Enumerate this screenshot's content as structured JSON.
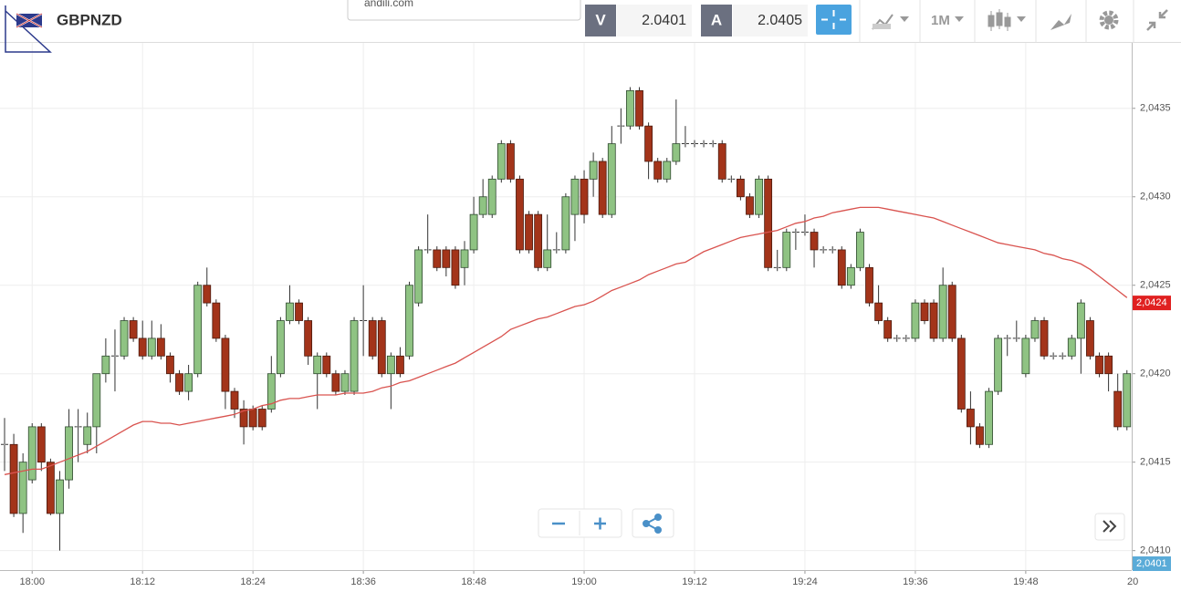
{
  "toolbar": {
    "symbol": "GBPNZD",
    "popup_text": "andili.com",
    "bid": {
      "label": "V",
      "value": "2.0401"
    },
    "ask": {
      "label": "A",
      "value": "2.0405"
    },
    "timeframe": "1M"
  },
  "chart_data": {
    "type": "candlestick",
    "categories": [
      null,
      null,
      null,
      "18:00",
      null,
      null,
      null,
      null,
      null,
      null,
      null,
      null,
      null,
      null,
      null,
      "18:12",
      null,
      null,
      null,
      null,
      null,
      null,
      null,
      null,
      null,
      null,
      null,
      "18:24",
      null,
      null,
      null,
      null,
      null,
      null,
      null,
      null,
      null,
      null,
      null,
      "18:36",
      null,
      null,
      null,
      null,
      null,
      null,
      null,
      null,
      null,
      null,
      null,
      "18:48",
      null,
      null,
      null,
      null,
      null,
      null,
      null,
      null,
      null,
      null,
      null,
      "19:00",
      null,
      null,
      null,
      null,
      null,
      null,
      null,
      null,
      null,
      null,
      null,
      "19:12",
      null,
      null,
      null,
      null,
      null,
      null,
      null,
      null,
      null,
      null,
      null,
      "19:24",
      null,
      null,
      null,
      null,
      null,
      null,
      null,
      null,
      null,
      null,
      null,
      "19:36",
      null,
      null,
      null,
      null,
      null,
      null,
      null,
      null,
      null,
      null,
      null,
      "19:48",
      null,
      null,
      null,
      null,
      null,
      null,
      null,
      null,
      null,
      null,
      null
    ],
    "x_cutoff_label": "20",
    "open": [
      2.0416,
      2.0416,
      2.04121,
      2.0414,
      2.0417,
      2.0415,
      2.04121,
      2.0414,
      2.0417,
      2.0416,
      2.0417,
      2.042,
      2.0421,
      2.0421,
      2.0423,
      2.0422,
      2.0421,
      2.0422,
      2.0421,
      2.042,
      2.0419,
      2.042,
      2.0425,
      2.0424,
      2.0422,
      2.0419,
      2.0418,
      2.0418,
      2.0418,
      2.0418,
      2.042,
      2.0423,
      2.0424,
      2.0423,
      2.042,
      2.0421,
      2.042,
      2.0419,
      2.0419,
      2.0423,
      2.0423,
      2.0423,
      2.042,
      2.0421,
      2.0421,
      2.0424,
      2.0427,
      2.0427,
      2.0427,
      2.0427,
      2.0426,
      2.0427,
      2.0429,
      2.0429,
      2.0431,
      2.0433,
      2.0431,
      2.0429,
      2.0429,
      2.0426,
      2.0427,
      2.0427,
      2.0429,
      2.0431,
      2.0431,
      2.0432,
      2.0429,
      2.0434,
      2.0434,
      2.0436,
      2.0434,
      2.0432,
      2.0431,
      2.0432,
      2.0433,
      2.0433,
      2.0433,
      2.0433,
      2.0433,
      2.0431,
      2.0431,
      2.043,
      2.0429,
      2.0431,
      2.0426,
      2.0426,
      2.0428,
      2.0428,
      2.0428,
      2.0427,
      2.0427,
      2.0427,
      2.0425,
      2.0426,
      2.0426,
      2.0424,
      2.0423,
      2.0422,
      2.0422,
      2.0422,
      2.0424,
      2.0424,
      2.0422,
      2.0425,
      2.0422,
      2.0418,
      2.0417,
      2.0416,
      2.0419,
      2.0422,
      2.0422,
      2.042,
      2.0422,
      2.0423,
      2.0421,
      2.0421,
      2.0421,
      2.0422,
      2.0423,
      2.0421,
      2.0421,
      2.0419,
      2.0417
    ],
    "high": [
      2.04175,
      2.04166,
      2.04155,
      2.04172,
      2.04172,
      2.04152,
      2.04145,
      2.0418,
      2.0418,
      2.04178,
      2.042,
      2.0422,
      2.04225,
      2.04232,
      2.04232,
      2.0423,
      2.0423,
      2.04228,
      2.04212,
      2.04202,
      2.04205,
      2.04252,
      2.0426,
      2.04242,
      2.04222,
      2.04192,
      2.04185,
      2.04182,
      2.04182,
      2.0421,
      2.04232,
      2.0425,
      2.04242,
      2.04232,
      2.04212,
      2.04212,
      2.04202,
      2.04202,
      2.04232,
      2.0425,
      2.04232,
      2.04232,
      2.04212,
      2.04215,
      2.04252,
      2.04272,
      2.0429,
      2.04272,
      2.04272,
      2.04272,
      2.04275,
      2.043,
      2.0431,
      2.04312,
      2.04332,
      2.04332,
      2.04312,
      2.04292,
      2.04292,
      2.0429,
      2.0428,
      2.04302,
      2.04312,
      2.04315,
      2.04325,
      2.04322,
      2.0434,
      2.0435,
      2.04362,
      2.04362,
      2.04342,
      2.04322,
      2.04322,
      2.04355,
      2.0434,
      2.04332,
      2.04332,
      2.04332,
      2.04332,
      2.04312,
      2.04312,
      2.04302,
      2.04312,
      2.04312,
      2.0427,
      2.04282,
      2.04282,
      2.0429,
      2.04282,
      2.04272,
      2.04272,
      2.04272,
      2.04262,
      2.04282,
      2.04262,
      2.0425,
      2.04232,
      2.04222,
      2.04222,
      2.04242,
      2.04242,
      2.04242,
      2.0426,
      2.04252,
      2.04222,
      2.0419,
      2.04172,
      2.04192,
      2.04222,
      2.04222,
      2.0423,
      2.04222,
      2.04232,
      2.04232,
      2.04212,
      2.04212,
      2.04222,
      2.04242,
      2.04232,
      2.04212,
      2.04212,
      2.042,
      2.04202
    ],
    "low": [
      2.04145,
      2.04119,
      2.0411,
      2.04138,
      2.04145,
      2.0412,
      2.041,
      2.04135,
      2.0415,
      2.04155,
      2.04155,
      2.04195,
      2.0419,
      2.04208,
      2.04218,
      2.04208,
      2.04208,
      2.04208,
      2.04195,
      2.04188,
      2.04185,
      2.04198,
      2.04238,
      2.04218,
      2.0418,
      2.04175,
      2.0416,
      2.04168,
      2.04168,
      2.04178,
      2.04198,
      2.04228,
      2.04228,
      2.04205,
      2.0418,
      2.04198,
      2.04188,
      2.04188,
      2.04188,
      2.0421,
      2.04208,
      2.04198,
      2.0418,
      2.04198,
      2.04208,
      2.04238,
      2.04268,
      2.04258,
      2.04255,
      2.04248,
      2.0425,
      2.04268,
      2.04288,
      2.04288,
      2.04308,
      2.04308,
      2.04268,
      2.04268,
      2.04258,
      2.04258,
      2.04268,
      2.04268,
      2.04275,
      2.04285,
      2.043,
      2.04288,
      2.04288,
      2.0433,
      2.04338,
      2.04338,
      2.0431,
      2.04308,
      2.04308,
      2.04318,
      2.04328,
      2.04328,
      2.04328,
      2.04328,
      2.04308,
      2.04308,
      2.04298,
      2.04288,
      2.04288,
      2.04258,
      2.04258,
      2.04258,
      2.0427,
      2.04278,
      2.0426,
      2.04268,
      2.04268,
      2.04248,
      2.04248,
      2.04258,
      2.04238,
      2.04228,
      2.04218,
      2.04218,
      2.04218,
      2.04218,
      2.04228,
      2.04218,
      2.04218,
      2.04218,
      2.04178,
      2.0416,
      2.04158,
      2.04158,
      2.04188,
      2.0421,
      2.04218,
      2.04198,
      2.04218,
      2.04208,
      2.04208,
      2.04208,
      2.04208,
      2.042,
      2.04208,
      2.04198,
      2.0419,
      2.04168,
      2.04168
    ],
    "close": [
      2.0416,
      2.04121,
      2.0415,
      2.0417,
      2.0415,
      2.04121,
      2.0414,
      2.0417,
      2.0417,
      2.0417,
      2.042,
      2.0421,
      2.0421,
      2.0423,
      2.0422,
      2.0421,
      2.0422,
      2.0421,
      2.042,
      2.0419,
      2.042,
      2.0425,
      2.0424,
      2.0422,
      2.0419,
      2.0418,
      2.0417,
      2.0417,
      2.0417,
      2.042,
      2.0423,
      2.0424,
      2.0423,
      2.0421,
      2.0421,
      2.042,
      2.0419,
      2.042,
      2.0423,
      2.0423,
      2.0421,
      2.042,
      2.0421,
      2.042,
      2.0425,
      2.0427,
      2.0427,
      2.0426,
      2.0426,
      2.0425,
      2.0427,
      2.0429,
      2.043,
      2.0431,
      2.0433,
      2.0431,
      2.0427,
      2.0427,
      2.0426,
      2.0427,
      2.0427,
      2.043,
      2.0431,
      2.0429,
      2.0432,
      2.0429,
      2.0433,
      2.0434,
      2.0436,
      2.0434,
      2.0432,
      2.0431,
      2.0432,
      2.0433,
      2.0433,
      2.0433,
      2.0433,
      2.0433,
      2.0431,
      2.0431,
      2.043,
      2.0429,
      2.0431,
      2.0426,
      2.0426,
      2.0428,
      2.0428,
      2.0428,
      2.0427,
      2.0427,
      2.0427,
      2.0425,
      2.0426,
      2.0428,
      2.0424,
      2.0423,
      2.0422,
      2.0422,
      2.0422,
      2.0424,
      2.0423,
      2.0422,
      2.0425,
      2.0422,
      2.0418,
      2.0417,
      2.0416,
      2.0419,
      2.0422,
      2.0422,
      2.0422,
      2.0422,
      2.0423,
      2.0421,
      2.0421,
      2.0421,
      2.0422,
      2.0424,
      2.0421,
      2.042,
      2.042,
      2.0417,
      2.042
    ],
    "up_color": "#8fc383",
    "down_color": "#a3341a",
    "moving_average": {
      "color": "#d9534f",
      "values": [
        2.04143,
        2.04144,
        2.04145,
        2.04146,
        2.04146,
        2.04148,
        2.0415,
        2.04152,
        2.04154,
        2.04156,
        2.04159,
        2.04162,
        2.04165,
        2.04168,
        2.04171,
        2.04173,
        2.04173,
        2.04172,
        2.04172,
        2.04171,
        2.04172,
        2.04173,
        2.04174,
        2.04175,
        2.04176,
        2.04177,
        2.04179,
        2.0418,
        2.04182,
        2.04183,
        2.04185,
        2.04186,
        2.04186,
        2.04187,
        2.04188,
        2.04188,
        2.04188,
        2.04189,
        2.04189,
        2.04189,
        2.0419,
        2.04192,
        2.04193,
        2.04195,
        2.04196,
        2.04198,
        2.042,
        2.04202,
        2.04204,
        2.04206,
        2.04209,
        2.04212,
        2.04215,
        2.04218,
        2.04221,
        2.04225,
        2.04227,
        2.04229,
        2.04231,
        2.04232,
        2.04234,
        2.04236,
        2.04238,
        2.04239,
        2.04241,
        2.04244,
        2.04247,
        2.04249,
        2.04251,
        2.04253,
        2.04256,
        2.04258,
        2.0426,
        2.04262,
        2.04263,
        2.04266,
        2.04269,
        2.04271,
        2.04273,
        2.04275,
        2.04277,
        2.04278,
        2.04279,
        2.0428,
        2.04281,
        2.04283,
        2.04285,
        2.04286,
        2.04288,
        2.04289,
        2.04291,
        2.04292,
        2.04293,
        2.04294,
        2.04294,
        2.04294,
        2.04293,
        2.04292,
        2.04291,
        2.0429,
        2.04289,
        2.04288,
        2.04286,
        2.04284,
        2.04282,
        2.0428,
        2.04278,
        2.04276,
        2.04274,
        2.04273,
        2.04272,
        2.04271,
        2.0427,
        2.04268,
        2.04267,
        2.04265,
        2.04264,
        2.04262,
        2.04259,
        2.04255,
        2.04251,
        2.04247,
        2.04243
      ],
      "current_label": {
        "value": 2.0424,
        "label": "2,0424"
      }
    },
    "price_tag": {
      "value": 2.0401,
      "label": "2,0401",
      "color": "#5aabd8"
    },
    "ylim": [
      2.04089,
      2.04387
    ],
    "yticks": [
      {
        "value": 2.041,
        "label": "2,0410"
      },
      {
        "value": 2.0415,
        "label": "2,0415"
      },
      {
        "value": 2.042,
        "label": "2,0420"
      },
      {
        "value": 2.0425,
        "label": "2,0425"
      },
      {
        "value": 2.043,
        "label": "2,0430"
      },
      {
        "value": 2.0435,
        "label": "2,0435"
      }
    ],
    "grid": true
  }
}
